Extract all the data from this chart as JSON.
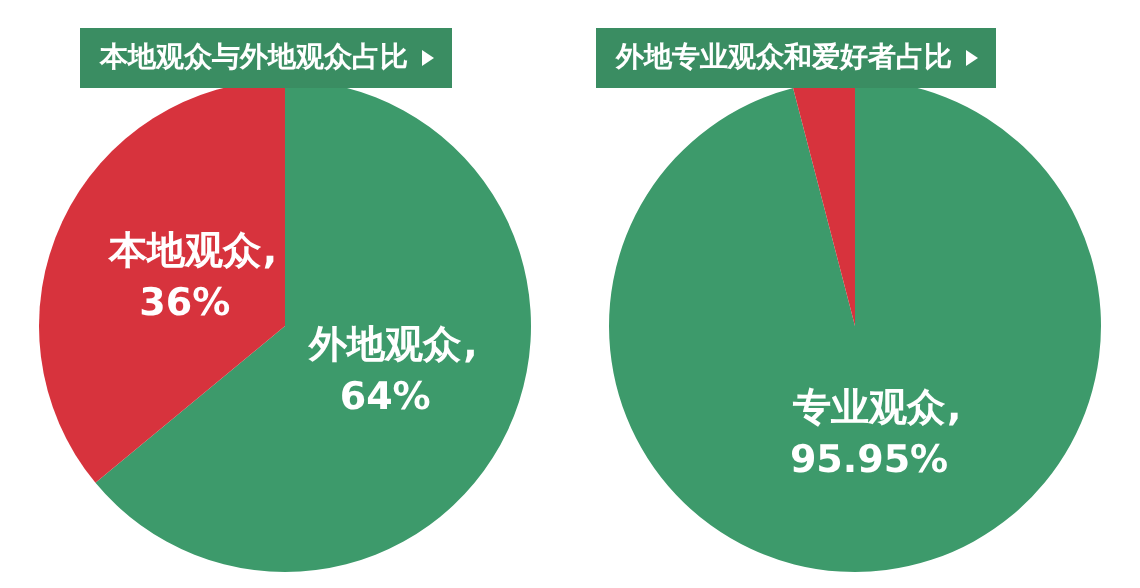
{
  "chart_data": [
    {
      "type": "pie",
      "title": "本地观众与外地观众占比",
      "categories": [
        "外地观众",
        "本地观众"
      ],
      "values": [
        64,
        36
      ],
      "colors": [
        "#3d9a6b",
        "#d7333d"
      ],
      "value_labels": [
        ", 64%",
        ", 36%"
      ]
    },
    {
      "type": "pie",
      "title": "外地专业观众和爱好者占比",
      "categories": [
        "专业观众",
        null
      ],
      "values": [
        95.95,
        4.05
      ],
      "colors": [
        "#3d9a6b",
        "#d7333d"
      ],
      "value_labels": [
        ", 95.95%",
        null
      ]
    }
  ]
}
